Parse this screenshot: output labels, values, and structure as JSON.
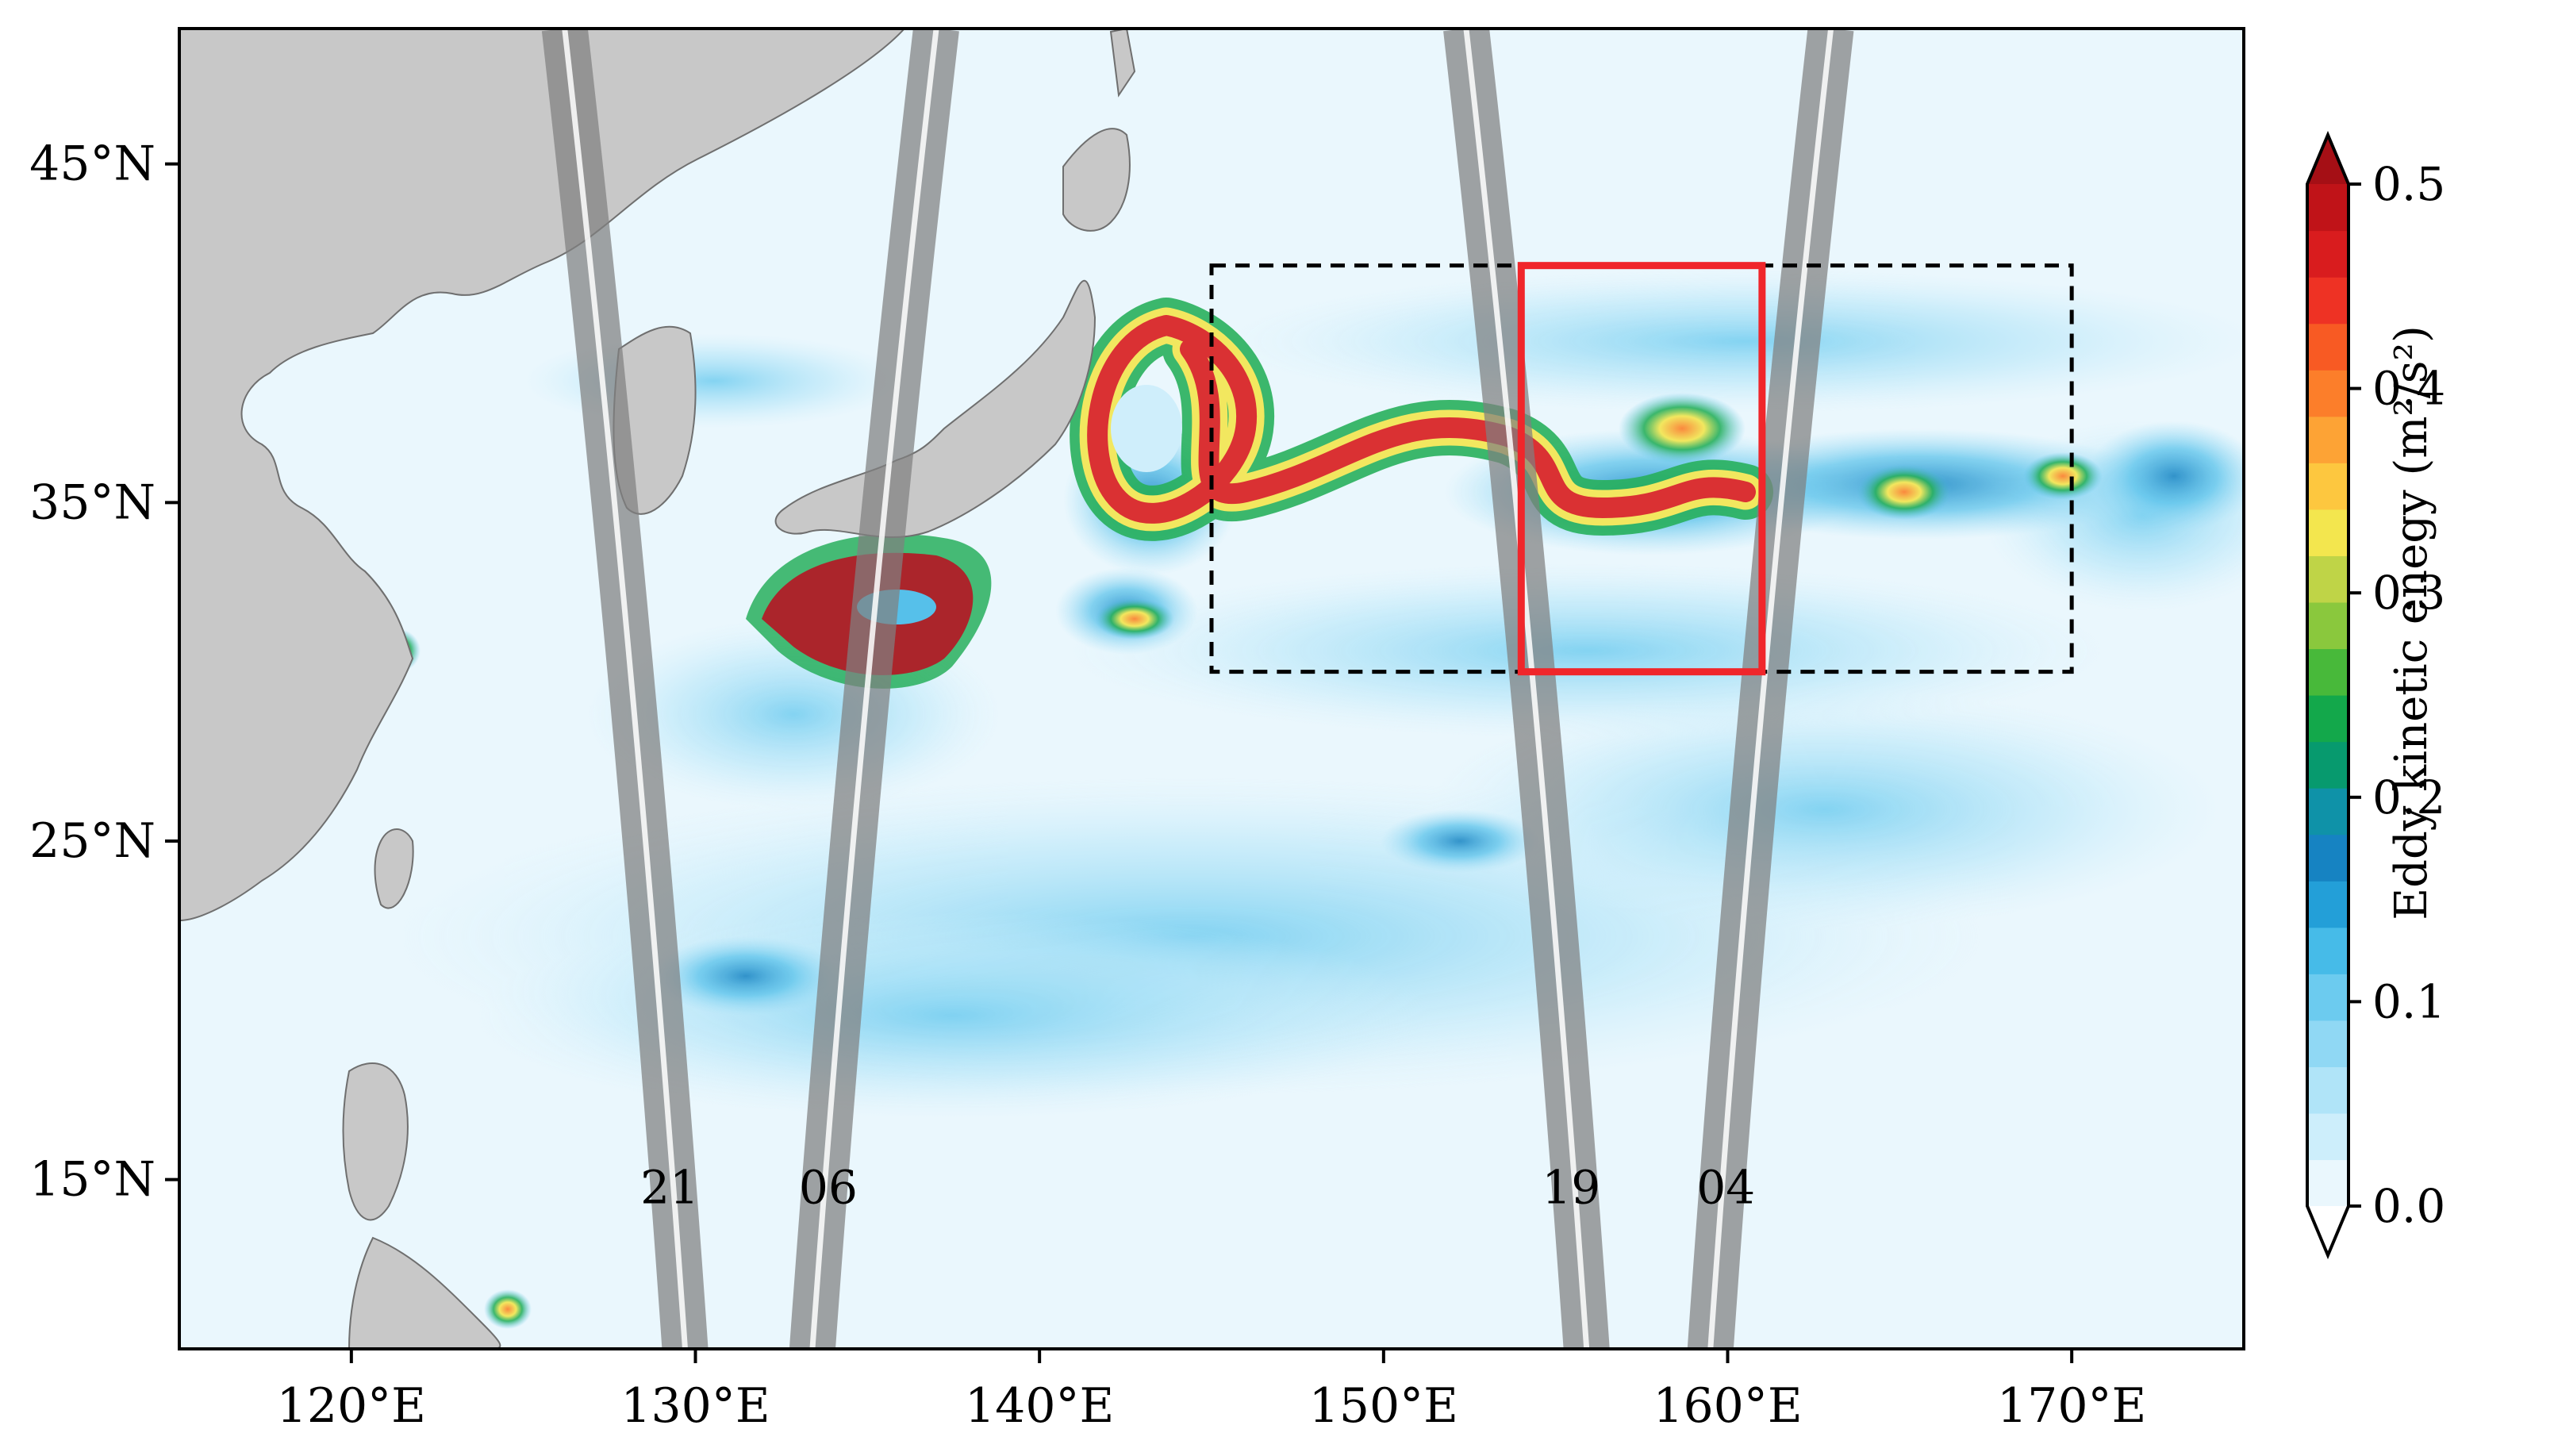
{
  "map": {
    "lon_range": [
      115,
      175
    ],
    "lat_range": [
      10,
      49
    ],
    "x_ticks": [
      120,
      130,
      140,
      150,
      160,
      170
    ],
    "y_ticks": [
      15,
      25,
      35,
      45
    ],
    "x_tick_labels": [
      "120°E",
      "130°E",
      "140°E",
      "150°E",
      "160°E",
      "170°E"
    ],
    "y_tick_labels": [
      "15°N",
      "25°N",
      "35°N",
      "45°N"
    ],
    "ocean_color": "#eaf7fd",
    "land_color": "#c8c8c8",
    "coast_color": "#6f6f6f"
  },
  "tracks": {
    "color": "#808080",
    "labels": [
      "21",
      "06",
      "19",
      "04"
    ],
    "items": [
      {
        "label": "21",
        "lon_north": 126.2,
        "lon_south": 129.7,
        "dir": 1
      },
      {
        "label": "06",
        "lon_north": 137.0,
        "lon_south": 133.4,
        "dir": -1
      },
      {
        "label": "19",
        "lon_north": 152.4,
        "lon_south": 155.9,
        "dir": 1
      },
      {
        "label": "04",
        "lon_north": 163.0,
        "lon_south": 159.5,
        "dir": -1
      }
    ]
  },
  "boxes": {
    "study_area": {
      "lon": [
        145,
        170
      ],
      "lat": [
        30,
        42
      ],
      "color": "#000000",
      "style": "dashed"
    },
    "focus_area": {
      "lon": [
        154,
        161
      ],
      "lat": [
        30,
        42
      ],
      "color": "#f0262b",
      "style": "solid"
    }
  },
  "colorbar": {
    "label": "Eddy kinetic enegy (m²/s²)",
    "ticks": [
      0.0,
      0.1,
      0.2,
      0.3,
      0.4,
      0.5
    ],
    "tick_labels": [
      "0.0",
      "0.1",
      "0.2",
      "0.3",
      "0.4",
      "0.5"
    ],
    "extend": "both",
    "colors": [
      "#ffffff",
      "#eaf7fd",
      "#cdeefb",
      "#b0e4f8",
      "#90d8f4",
      "#6ccbef",
      "#46bbe8",
      "#239fd8",
      "#1683c2",
      "#0f92a8",
      "#079a6e",
      "#13a84b",
      "#48b93a",
      "#8ac83d",
      "#bfd447",
      "#f3e64e",
      "#fdc73f",
      "#fda335",
      "#fc7e2a",
      "#f85a23",
      "#ee3224",
      "#d91c1e",
      "#c01318",
      "#a50f15"
    ]
  }
}
